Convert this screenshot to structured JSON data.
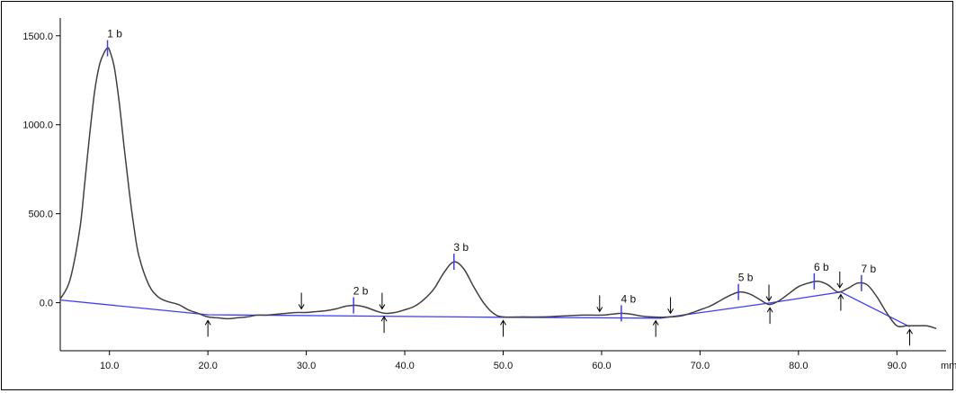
{
  "chart_data": {
    "type": "line",
    "title": "",
    "xlabel": "",
    "ylabel": "",
    "x_unit_label": "mm",
    "xlim": [
      5,
      95
    ],
    "ylim": [
      -270,
      1600
    ],
    "x_ticks": [
      10,
      20,
      30,
      40,
      50,
      60,
      70,
      80,
      90
    ],
    "x_tick_labels": [
      "10.0",
      "20.0",
      "30.0",
      "40.0",
      "50.0",
      "60.0",
      "70.0",
      "80.0",
      "90.0"
    ],
    "y_ticks": [
      0,
      500,
      1000,
      1500
    ],
    "y_tick_labels": [
      "0.0",
      "500.0",
      "1000.0",
      "1500.0"
    ],
    "grid": false,
    "colors": {
      "trace": "#404040",
      "baseline": "#3c3cff",
      "peak_marker": "#3c3cff",
      "arrow": "#000000",
      "axis": "#000000"
    },
    "series": [
      {
        "kind": "trace",
        "x": [
          5,
          6,
          7,
          7.5,
          8,
          8.5,
          9,
          9.5,
          9.8,
          10,
          10.5,
          11,
          11.5,
          12,
          12.5,
          13,
          14,
          15,
          16,
          17,
          18,
          19,
          20,
          21,
          22,
          23,
          24,
          25,
          26,
          27,
          28,
          29,
          30,
          31,
          32,
          33,
          34,
          35,
          36,
          37,
          38,
          39,
          40,
          41,
          42,
          43,
          44,
          45,
          46,
          47,
          48,
          49,
          50,
          52,
          54,
          56,
          58,
          60,
          61,
          62,
          63,
          64,
          65,
          66,
          67,
          68,
          69,
          70,
          71,
          72,
          73,
          74,
          75,
          76,
          77,
          78,
          79,
          80,
          81,
          82,
          83,
          84,
          85,
          86,
          87,
          88,
          89,
          90,
          91,
          92,
          93,
          94
        ],
        "y": [
          20,
          130,
          420,
          680,
          950,
          1190,
          1340,
          1410,
          1430,
          1420,
          1320,
          1120,
          870,
          630,
          420,
          260,
          100,
          30,
          5,
          -10,
          -40,
          -60,
          -80,
          -85,
          -90,
          -85,
          -80,
          -70,
          -70,
          -65,
          -60,
          -55,
          -55,
          -50,
          -45,
          -35,
          -20,
          -15,
          -25,
          -45,
          -60,
          -55,
          -40,
          -20,
          20,
          80,
          170,
          230,
          190,
          90,
          0,
          -60,
          -80,
          -80,
          -80,
          -75,
          -70,
          -70,
          -65,
          -60,
          -65,
          -75,
          -80,
          -82,
          -80,
          -75,
          -60,
          -40,
          -20,
          10,
          40,
          60,
          50,
          20,
          -10,
          10,
          50,
          90,
          110,
          120,
          100,
          60,
          80,
          110,
          100,
          30,
          -60,
          -130,
          -130,
          -130,
          -130,
          -145
        ]
      },
      {
        "kind": "baseline",
        "x": [
          5,
          20,
          50,
          66,
          77,
          84.3,
          91.3
        ],
        "y": [
          15,
          -68,
          -82,
          -87,
          -2,
          60,
          -135
        ]
      }
    ],
    "peaks": [
      {
        "label": "1 b",
        "x": 9.8,
        "y": 1430
      },
      {
        "label": "2 b",
        "x": 34.8,
        "y": -15
      },
      {
        "label": "3 b",
        "x": 45,
        "y": 230
      },
      {
        "label": "4 b",
        "x": 62,
        "y": -60
      },
      {
        "label": "5 b",
        "x": 73.9,
        "y": 60
      },
      {
        "label": "6 b",
        "x": 81.6,
        "y": 120
      },
      {
        "label": "7 b",
        "x": 86.4,
        "y": 110
      }
    ],
    "boundary_markers": [
      {
        "x": 20,
        "dir": "up"
      },
      {
        "x": 29.5,
        "dir": "down"
      },
      {
        "x": 37.7,
        "dir": "down"
      },
      {
        "x": 37.9,
        "dir": "up"
      },
      {
        "x": 50,
        "dir": "up"
      },
      {
        "x": 59.8,
        "dir": "down"
      },
      {
        "x": 65.5,
        "dir": "up"
      },
      {
        "x": 67,
        "dir": "down"
      },
      {
        "x": 77,
        "dir": "down"
      },
      {
        "x": 77.1,
        "dir": "up"
      },
      {
        "x": 84.2,
        "dir": "down"
      },
      {
        "x": 84.3,
        "dir": "up"
      },
      {
        "x": 91.3,
        "dir": "up"
      }
    ]
  }
}
